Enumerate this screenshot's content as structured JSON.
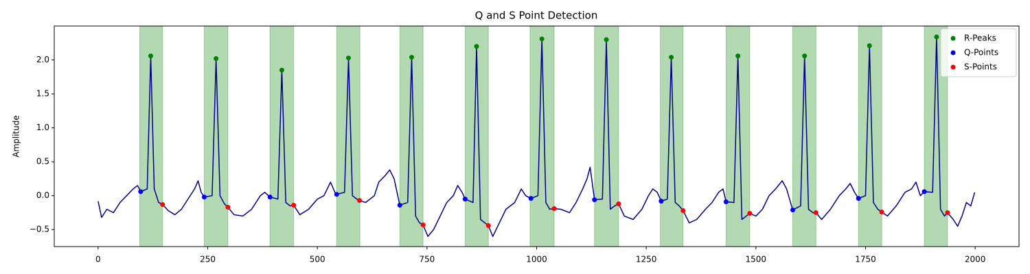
{
  "chart_data": {
    "type": "line",
    "title": "Q and S Point Detection",
    "ylabel": "Amplitude",
    "xlim": [
      -100,
      2100
    ],
    "ylim": [
      -0.75,
      2.5
    ],
    "xticks": [
      0,
      250,
      500,
      750,
      1000,
      1250,
      1500,
      1750,
      2000
    ],
    "yticks": [
      {
        "value": -0.5,
        "label": "−0.5"
      },
      {
        "value": 0,
        "label": "0.0"
      },
      {
        "value": 0.5,
        "label": "0.5"
      },
      {
        "value": 1,
        "label": "1.0"
      },
      {
        "value": 1.5,
        "label": "1.5"
      },
      {
        "value": 2,
        "label": "2.0"
      }
    ],
    "legend": "upper right",
    "span_color": "#008000",
    "spans": [
      [
        95,
        147
      ],
      [
        242,
        296
      ],
      [
        392,
        446
      ],
      [
        544,
        597
      ],
      [
        688,
        741
      ],
      [
        837,
        890
      ],
      [
        985,
        1040
      ],
      [
        1132,
        1187
      ],
      [
        1282,
        1334
      ],
      [
        1432,
        1486
      ],
      [
        1584,
        1637
      ],
      [
        1734,
        1787
      ],
      [
        1884,
        1937
      ]
    ],
    "signal": {
      "color": "#00008b",
      "x": [
        0,
        8,
        20,
        35,
        50,
        65,
        80,
        90,
        97,
        112,
        120,
        128,
        138,
        147,
        160,
        175,
        190,
        205,
        220,
        228,
        235,
        242,
        260,
        269,
        278,
        288,
        296,
        310,
        330,
        350,
        370,
        380,
        392,
        410,
        419,
        428,
        438,
        446,
        460,
        480,
        500,
        515,
        530,
        540,
        544,
        562,
        571,
        580,
        590,
        596,
        610,
        630,
        640,
        655,
        665,
        675,
        688,
        706,
        715,
        724,
        733,
        741,
        752,
        765,
        780,
        795,
        810,
        820,
        830,
        837,
        855,
        863,
        872,
        882,
        890,
        900,
        915,
        930,
        950,
        965,
        975,
        987,
        1003,
        1012,
        1021,
        1030,
        1040,
        1055,
        1075,
        1090,
        1105,
        1115,
        1122,
        1132,
        1150,
        1159,
        1168,
        1178,
        1187,
        1200,
        1220,
        1240,
        1255,
        1265,
        1275,
        1284,
        1298,
        1307,
        1316,
        1325,
        1334,
        1348,
        1365,
        1385,
        1400,
        1415,
        1425,
        1432,
        1450,
        1459,
        1468,
        1478,
        1486,
        1500,
        1515,
        1530,
        1545,
        1560,
        1570,
        1584,
        1602,
        1611,
        1620,
        1630,
        1637,
        1650,
        1670,
        1690,
        1705,
        1715,
        1725,
        1734,
        1750,
        1759,
        1768,
        1778,
        1787,
        1800,
        1820,
        1840,
        1855,
        1865,
        1875,
        1884,
        1903,
        1912,
        1921,
        1930,
        1937,
        1950,
        1960,
        1970,
        1980,
        1990,
        1999
      ],
      "values": [
        -0.08,
        -0.32,
        -0.2,
        -0.25,
        -0.1,
        0.0,
        0.1,
        0.15,
        0.06,
        0.1,
        2.06,
        0.1,
        -0.1,
        -0.13,
        -0.22,
        -0.28,
        -0.2,
        -0.05,
        0.1,
        0.22,
        0.05,
        -0.02,
        0.0,
        2.02,
        0.0,
        -0.12,
        -0.17,
        -0.28,
        -0.3,
        -0.2,
        0.0,
        0.05,
        -0.02,
        -0.05,
        1.85,
        -0.1,
        -0.15,
        -0.14,
        -0.28,
        -0.2,
        -0.05,
        0.0,
        0.2,
        0.05,
        0.02,
        0.05,
        2.03,
        0.0,
        -0.05,
        -0.07,
        -0.1,
        0.0,
        0.2,
        0.3,
        0.38,
        0.25,
        -0.14,
        -0.1,
        2.04,
        -0.3,
        -0.4,
        -0.43,
        -0.6,
        -0.5,
        -0.3,
        -0.1,
        0.0,
        0.15,
        0.05,
        -0.05,
        -0.1,
        2.2,
        -0.35,
        -0.4,
        -0.44,
        -0.6,
        -0.4,
        -0.2,
        -0.1,
        0.1,
        0.0,
        -0.04,
        0.0,
        2.31,
        -0.1,
        -0.2,
        -0.19,
        -0.2,
        -0.25,
        -0.1,
        0.1,
        0.25,
        0.42,
        -0.06,
        -0.05,
        2.3,
        -0.2,
        -0.15,
        -0.12,
        -0.3,
        -0.35,
        -0.2,
        0.0,
        0.1,
        0.05,
        -0.08,
        -0.05,
        2.04,
        -0.1,
        -0.15,
        -0.22,
        -0.4,
        -0.35,
        -0.2,
        -0.1,
        0.05,
        0.1,
        -0.09,
        -0.1,
        2.06,
        -0.35,
        -0.3,
        -0.26,
        -0.3,
        -0.2,
        0.0,
        0.1,
        0.22,
        0.1,
        -0.21,
        -0.15,
        2.06,
        -0.2,
        -0.25,
        -0.25,
        -0.35,
        -0.2,
        0.0,
        0.1,
        0.18,
        0.05,
        -0.04,
        0.0,
        2.21,
        -0.1,
        -0.2,
        -0.24,
        -0.3,
        -0.15,
        0.05,
        0.1,
        0.2,
        0.0,
        0.06,
        0.05,
        2.34,
        -0.2,
        -0.3,
        -0.25,
        -0.35,
        -0.45,
        -0.3,
        -0.1,
        -0.15,
        0.05
      ]
    },
    "series": [
      {
        "name": "R-Peaks",
        "color": "#008000",
        "x": [
          120,
          269,
          419,
          571,
          715,
          863,
          1012,
          1159,
          1307,
          1459,
          1611,
          1759,
          1912
        ],
        "values": [
          2.06,
          2.02,
          1.85,
          2.03,
          2.04,
          2.2,
          2.31,
          2.3,
          2.04,
          2.06,
          2.06,
          2.21,
          2.34
        ]
      },
      {
        "name": "Q-Points",
        "color": "#0000ff",
        "x": [
          97,
          242,
          392,
          544,
          688,
          837,
          987,
          1132,
          1284,
          1432,
          1584,
          1734,
          1884
        ],
        "values": [
          0.06,
          -0.02,
          -0.02,
          0.02,
          -0.14,
          -0.05,
          -0.04,
          -0.06,
          -0.08,
          -0.09,
          -0.21,
          -0.04,
          0.06
        ]
      },
      {
        "name": "S-Points",
        "color": "#ff0000",
        "x": [
          147,
          296,
          446,
          596,
          741,
          890,
          1040,
          1187,
          1334,
          1486,
          1637,
          1787,
          1937
        ],
        "values": [
          -0.13,
          -0.17,
          -0.14,
          -0.07,
          -0.43,
          -0.44,
          -0.19,
          -0.12,
          -0.22,
          -0.26,
          -0.25,
          -0.24,
          -0.25
        ]
      }
    ]
  }
}
